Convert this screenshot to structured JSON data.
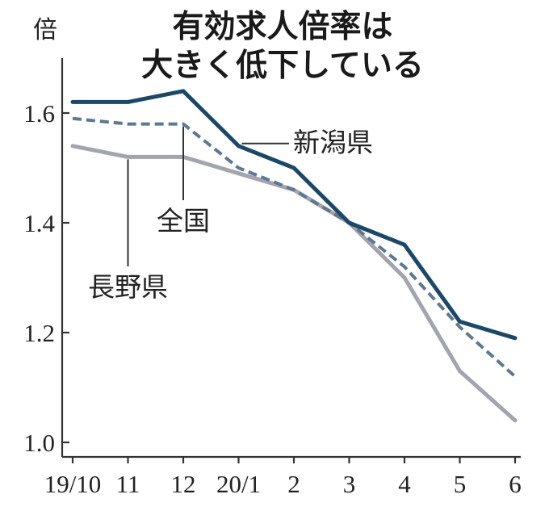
{
  "chart_data": {
    "type": "line",
    "title": [
      "有効求人倍率は",
      "大きく低下している"
    ],
    "ylabel": "倍",
    "xlabel": "",
    "categories": [
      "19/10",
      "11",
      "12",
      "20/1",
      "2",
      "3",
      "4",
      "5",
      "6"
    ],
    "ylim": [
      1.0,
      1.7
    ],
    "yticks": [
      1.0,
      1.2,
      1.4,
      1.6
    ],
    "ytick_labels": [
      "1.0",
      "1.2",
      "1.4",
      "1.6"
    ],
    "grid": false,
    "legend": "none",
    "series": [
      {
        "name": "新潟県",
        "values": [
          1.62,
          1.62,
          1.64,
          1.54,
          1.5,
          1.4,
          1.36,
          1.22,
          1.19
        ],
        "color": "#1c4867",
        "style": "solid"
      },
      {
        "name": "全国",
        "values": [
          1.59,
          1.58,
          1.58,
          1.5,
          1.46,
          1.4,
          1.32,
          1.21,
          1.12
        ],
        "color": "#5e7890",
        "style": "dashed"
      },
      {
        "name": "長野県",
        "values": [
          1.54,
          1.52,
          1.52,
          1.49,
          1.46,
          1.4,
          1.3,
          1.13,
          1.04
        ],
        "color": "#a3a5ae",
        "style": "solid"
      }
    ]
  }
}
